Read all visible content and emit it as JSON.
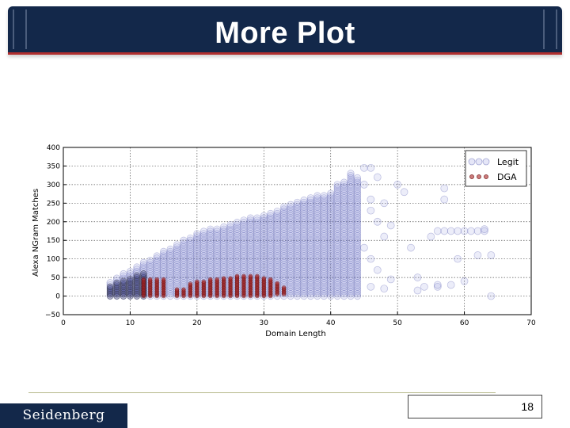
{
  "slide": {
    "title": "More Plot",
    "footer_brand": "Seidenberg",
    "page_number": "18"
  },
  "chart_data": {
    "type": "scatter",
    "title": "",
    "xlabel": "Domain Length",
    "ylabel": "Alexa NGram Matches",
    "xlim": [
      0,
      70
    ],
    "ylim": [
      -50,
      400
    ],
    "x_ticks": [
      "0",
      "10",
      "20",
      "30",
      "40",
      "50",
      "60",
      "70"
    ],
    "y_ticks": [
      "−50",
      "0",
      "50",
      "100",
      "150",
      "200",
      "250",
      "300",
      "350",
      "400"
    ],
    "grid": true,
    "legend_position": "top-right",
    "series": [
      {
        "name": "Legit",
        "color": "#7b80d6",
        "description_points": "dense vertical column per integer domain length",
        "columns": [
          {
            "x": 7,
            "y_min": 0,
            "y_max": 40
          },
          {
            "x": 8,
            "y_min": 0,
            "y_max": 50
          },
          {
            "x": 9,
            "y_min": 0,
            "y_max": 60
          },
          {
            "x": 10,
            "y_min": 0,
            "y_max": 70
          },
          {
            "x": 11,
            "y_min": 0,
            "y_max": 80
          },
          {
            "x": 12,
            "y_min": 0,
            "y_max": 90
          },
          {
            "x": 13,
            "y_min": 0,
            "y_max": 100
          },
          {
            "x": 14,
            "y_min": 0,
            "y_max": 110
          },
          {
            "x": 15,
            "y_min": 0,
            "y_max": 120
          },
          {
            "x": 16,
            "y_min": 0,
            "y_max": 130
          },
          {
            "x": 17,
            "y_min": 0,
            "y_max": 140
          },
          {
            "x": 18,
            "y_min": 0,
            "y_max": 150
          },
          {
            "x": 19,
            "y_min": 0,
            "y_max": 160
          },
          {
            "x": 20,
            "y_min": 0,
            "y_max": 170
          },
          {
            "x": 21,
            "y_min": 0,
            "y_max": 175
          },
          {
            "x": 22,
            "y_min": 0,
            "y_max": 180
          },
          {
            "x": 23,
            "y_min": 0,
            "y_max": 185
          },
          {
            "x": 24,
            "y_min": 0,
            "y_max": 190
          },
          {
            "x": 25,
            "y_min": 0,
            "y_max": 195
          },
          {
            "x": 26,
            "y_min": 0,
            "y_max": 200
          },
          {
            "x": 27,
            "y_min": 0,
            "y_max": 205
          },
          {
            "x": 28,
            "y_min": 0,
            "y_max": 210
          },
          {
            "x": 29,
            "y_min": 0,
            "y_max": 215
          },
          {
            "x": 30,
            "y_min": 0,
            "y_max": 220
          },
          {
            "x": 31,
            "y_min": 0,
            "y_max": 225
          },
          {
            "x": 32,
            "y_min": 0,
            "y_max": 230
          },
          {
            "x": 33,
            "y_min": 0,
            "y_max": 240
          },
          {
            "x": 34,
            "y_min": 0,
            "y_max": 250
          },
          {
            "x": 35,
            "y_min": 0,
            "y_max": 255
          },
          {
            "x": 36,
            "y_min": 0,
            "y_max": 260
          },
          {
            "x": 37,
            "y_min": 0,
            "y_max": 265
          },
          {
            "x": 38,
            "y_min": 0,
            "y_max": 270
          },
          {
            "x": 39,
            "y_min": 0,
            "y_max": 275
          },
          {
            "x": 40,
            "y_min": 0,
            "y_max": 280
          },
          {
            "x": 41,
            "y_min": 0,
            "y_max": 300
          },
          {
            "x": 42,
            "y_min": 0,
            "y_max": 310
          },
          {
            "x": 43,
            "y_min": 0,
            "y_max": 330
          },
          {
            "x": 44,
            "y_min": 0,
            "y_max": 320
          }
        ],
        "scattered_points": [
          [
            45,
            345
          ],
          [
            46,
            345
          ],
          [
            47,
            320
          ],
          [
            45,
            300
          ],
          [
            46,
            260
          ],
          [
            48,
            250
          ],
          [
            46,
            230
          ],
          [
            47,
            200
          ],
          [
            49,
            190
          ],
          [
            48,
            160
          ],
          [
            45,
            130
          ],
          [
            46,
            100
          ],
          [
            47,
            70
          ],
          [
            49,
            45
          ],
          [
            46,
            25
          ],
          [
            48,
            20
          ],
          [
            50,
            300
          ],
          [
            51,
            280
          ],
          [
            52,
            130
          ],
          [
            53,
            50
          ],
          [
            54,
            25
          ],
          [
            55,
            160
          ],
          [
            56,
            25
          ],
          [
            56,
            175
          ],
          [
            56,
            30
          ],
          [
            57,
            290
          ],
          [
            57,
            260
          ],
          [
            57,
            175
          ],
          [
            58,
            175
          ],
          [
            59,
            175
          ],
          [
            60,
            175
          ],
          [
            61,
            175
          ],
          [
            62,
            175
          ],
          [
            63,
            175
          ],
          [
            60,
            40
          ],
          [
            59,
            100
          ],
          [
            62,
            110
          ],
          [
            63,
            180
          ],
          [
            64,
            110
          ],
          [
            64,
            0
          ],
          [
            58,
            30
          ],
          [
            53,
            15
          ]
        ]
      },
      {
        "name": "DGA",
        "color": "#a82323",
        "columns": [
          {
            "x": 12,
            "y_min": 0,
            "y_max": 45
          },
          {
            "x": 13,
            "y_min": 0,
            "y_max": 45
          },
          {
            "x": 14,
            "y_min": 0,
            "y_max": 45
          },
          {
            "x": 15,
            "y_min": 0,
            "y_max": 45
          },
          {
            "x": 17,
            "y_min": 0,
            "y_max": 20
          },
          {
            "x": 18,
            "y_min": 0,
            "y_max": 20
          },
          {
            "x": 19,
            "y_min": 0,
            "y_max": 35
          },
          {
            "x": 20,
            "y_min": 0,
            "y_max": 40
          },
          {
            "x": 21,
            "y_min": 0,
            "y_max": 40
          },
          {
            "x": 22,
            "y_min": 0,
            "y_max": 45
          },
          {
            "x": 23,
            "y_min": 0,
            "y_max": 45
          },
          {
            "x": 24,
            "y_min": 0,
            "y_max": 50
          },
          {
            "x": 25,
            "y_min": 0,
            "y_max": 50
          },
          {
            "x": 26,
            "y_min": 0,
            "y_max": 55
          },
          {
            "x": 27,
            "y_min": 0,
            "y_max": 55
          },
          {
            "x": 28,
            "y_min": 0,
            "y_max": 55
          },
          {
            "x": 29,
            "y_min": 0,
            "y_max": 55
          },
          {
            "x": 30,
            "y_min": 0,
            "y_max": 50
          },
          {
            "x": 31,
            "y_min": 0,
            "y_max": 45
          },
          {
            "x": 32,
            "y_min": 5,
            "y_max": 35
          },
          {
            "x": 33,
            "y_min": 5,
            "y_max": 25
          }
        ]
      }
    ]
  }
}
